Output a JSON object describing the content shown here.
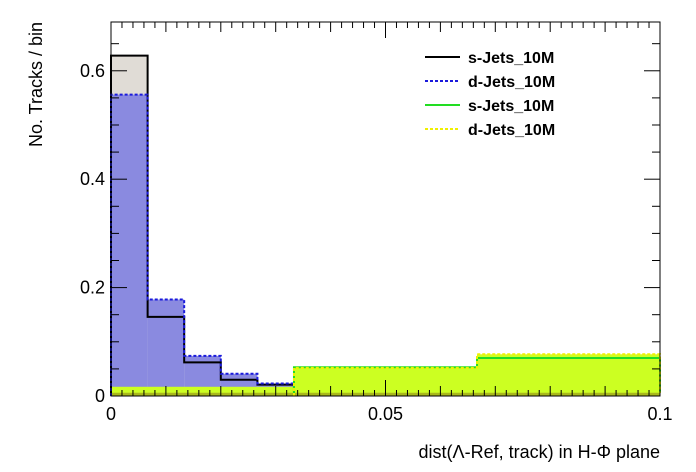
{
  "chart_data": {
    "type": "bar",
    "xlabel": "dist(Λ-Ref, track) in Η-Φ plane",
    "ylabel": "No. Tracks / bin",
    "xlim": [
      0,
      0.1
    ],
    "ylim": [
      0,
      0.69
    ],
    "x_ticks": [
      0,
      0.05,
      0.1
    ],
    "x_tick_labels": [
      "0",
      "0.05",
      "0.1"
    ],
    "y_ticks": [
      0,
      0.2,
      0.4,
      0.6
    ],
    "y_tick_labels": [
      "0",
      "0.2",
      "0.4",
      "0.6"
    ],
    "grid": false,
    "legend_position": "top-right",
    "bin_edges_low": [
      0,
      0.00667,
      0.01333,
      0.02,
      0.02667,
      0.03333
    ],
    "bin_edges_mid": [
      0.03333,
      0.06667,
      0.1
    ],
    "series": [
      {
        "name": "s-Jets_10M",
        "line_color": "#000000",
        "fill_color": "#e0dcd6",
        "line_style": "solid",
        "bins": "low",
        "values": [
          0.628,
          0.146,
          0.062,
          0.03,
          0.021
        ]
      },
      {
        "name": "d-Jets_10M",
        "line_color": "#1a1adc",
        "fill_color": "#8a8ae0",
        "line_style": "dotted",
        "bins": "low",
        "values": [
          0.556,
          0.178,
          0.074,
          0.041,
          0.023
        ]
      },
      {
        "name": "s-Jets_10M",
        "line_color": "#22dd22",
        "fill_color": "#d0f51e",
        "line_style": "solid",
        "bins": "mid",
        "values": [
          0.053,
          0.07
        ]
      },
      {
        "name": "d-Jets_10M",
        "line_color": "#f0f000",
        "fill_color": "#ccff22",
        "line_style": "dotted",
        "bins": "mid",
        "values": [
          0.052,
          0.077
        ]
      }
    ],
    "baseline_band": {
      "value": 0.017,
      "color": "#ccff22"
    },
    "bottom_band": {
      "value": 0.006,
      "color": "#a8b81a"
    }
  }
}
